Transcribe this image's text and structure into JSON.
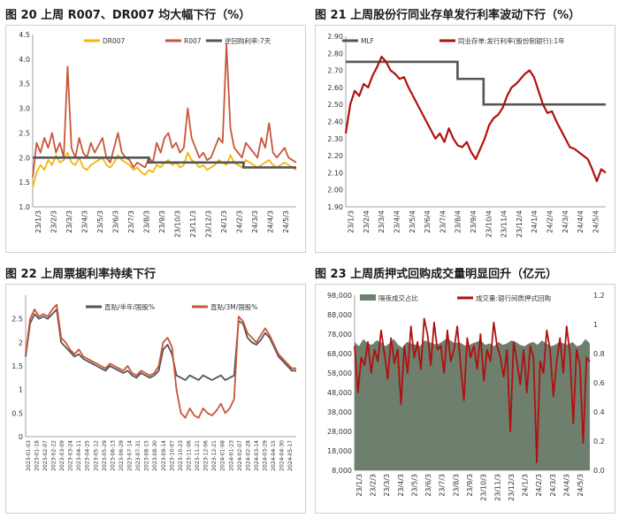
{
  "chart_data": [
    {
      "id": "c20",
      "type": "line",
      "title": "图 20 上周 R007、DR007 均大幅下行（%）",
      "ylim": [
        1.0,
        4.5
      ],
      "yticks": [
        1.0,
        1.5,
        2.0,
        2.5,
        3.0,
        3.5,
        4.0,
        4.5
      ],
      "ytick_labels": [
        "1.0",
        "1.5",
        "2.0",
        "2.5",
        "3.0",
        "3.5",
        "4.0",
        "4.5"
      ],
      "xticks": [
        "23/1/3",
        "23/2/3",
        "23/3/3",
        "23/4/3",
        "23/5/3",
        "23/6/3",
        "23/7/3",
        "23/8/3",
        "23/9/3",
        "23/10/3",
        "23/11/3",
        "23/12/3",
        "24/1/3",
        "24/2/3",
        "24/3/3",
        "24/4/3",
        "24/5/3"
      ],
      "series": [
        {
          "name": "DR007",
          "color": "#f2b705",
          "kind": "line",
          "values": [
            1.4,
            1.7,
            1.85,
            1.75,
            1.95,
            1.85,
            2.05,
            1.9,
            1.95,
            2.1,
            1.9,
            1.85,
            2.0,
            1.8,
            1.75,
            1.85,
            1.9,
            1.95,
            2.0,
            1.85,
            1.8,
            1.9,
            2.05,
            1.95,
            1.9,
            1.85,
            1.75,
            1.8,
            1.7,
            1.65,
            1.75,
            1.7,
            1.85,
            1.8,
            1.9,
            1.95,
            1.85,
            1.9,
            1.8,
            1.85,
            2.1,
            1.95,
            1.9,
            1.8,
            1.85,
            1.75,
            1.8,
            1.85,
            1.95,
            1.9,
            1.85,
            2.05,
            1.9,
            1.85,
            1.8,
            1.95,
            1.9,
            1.85,
            1.8,
            1.85,
            1.9,
            1.95,
            1.85,
            1.8,
            1.85,
            1.9,
            1.85,
            1.8,
            1.75
          ]
        },
        {
          "name": "R007",
          "color": "#c9553a",
          "kind": "line",
          "values": [
            1.6,
            2.3,
            2.1,
            2.4,
            2.2,
            2.5,
            2.1,
            2.3,
            2.0,
            3.85,
            2.2,
            2.0,
            2.4,
            2.1,
            2.0,
            2.3,
            2.1,
            2.25,
            2.4,
            2.0,
            1.9,
            2.2,
            2.5,
            2.1,
            2.0,
            1.95,
            1.8,
            1.9,
            1.85,
            1.8,
            2.0,
            1.9,
            2.3,
            2.1,
            2.4,
            2.5,
            2.2,
            2.3,
            2.1,
            2.2,
            3.0,
            2.4,
            2.2,
            2.0,
            2.1,
            1.95,
            2.0,
            2.2,
            2.4,
            2.3,
            4.3,
            2.6,
            2.2,
            2.1,
            2.0,
            2.3,
            2.2,
            2.1,
            2.0,
            2.4,
            2.2,
            2.7,
            2.1,
            2.0,
            2.1,
            2.2,
            2.0,
            1.95,
            1.9
          ]
        },
        {
          "name": "逆回购利率:7天",
          "color": "#555555",
          "kind": "step",
          "steps": [
            {
              "x": 0.0,
              "y": 2.0
            },
            {
              "x": 0.44,
              "y": 1.9
            },
            {
              "x": 0.8,
              "y": 1.8
            }
          ]
        }
      ]
    },
    {
      "id": "c21",
      "type": "line",
      "title": "图 21 上周股份行同业存单发行利率波动下行（%）",
      "ylim": [
        1.9,
        2.9
      ],
      "yticks": [
        1.9,
        2.0,
        2.1,
        2.2,
        2.3,
        2.4,
        2.5,
        2.6,
        2.7,
        2.8,
        2.9
      ],
      "ytick_labels": [
        "1.90",
        "2.00",
        "2.10",
        "2.20",
        "2.30",
        "2.40",
        "2.50",
        "2.60",
        "2.70",
        "2.80",
        "2.90"
      ],
      "xticks": [
        "23/1/3",
        "23/2/4",
        "23/3/4",
        "23/4/4",
        "23/5/4",
        "23/6/4",
        "23/7/4",
        "23/8/4",
        "23/9/4",
        "23/10/4",
        "23/11/4",
        "23/12/4",
        "24/1/4",
        "24/2/4",
        "24/3/4",
        "24/4/4",
        "24/5/4"
      ],
      "series": [
        {
          "name": "MLF",
          "color": "#555555",
          "kind": "step",
          "steps": [
            {
              "x": 0.0,
              "y": 2.75
            },
            {
              "x": 0.43,
              "y": 2.65
            },
            {
              "x": 0.53,
              "y": 2.5
            }
          ]
        },
        {
          "name": "同业存单:发行利率(股份制银行):1年",
          "color": "#b01010",
          "kind": "line",
          "values": [
            2.33,
            2.5,
            2.58,
            2.55,
            2.62,
            2.6,
            2.67,
            2.72,
            2.78,
            2.75,
            2.7,
            2.68,
            2.65,
            2.66,
            2.6,
            2.55,
            2.5,
            2.45,
            2.4,
            2.35,
            2.3,
            2.33,
            2.28,
            2.36,
            2.3,
            2.26,
            2.25,
            2.28,
            2.22,
            2.18,
            2.24,
            2.3,
            2.38,
            2.42,
            2.44,
            2.48,
            2.55,
            2.6,
            2.62,
            2.65,
            2.68,
            2.7,
            2.66,
            2.58,
            2.5,
            2.45,
            2.46,
            2.4,
            2.35,
            2.3,
            2.25,
            2.24,
            2.22,
            2.2,
            2.18,
            2.12,
            2.05,
            2.12,
            2.1
          ]
        }
      ]
    },
    {
      "id": "c22",
      "type": "line",
      "title": "图 22 上周票据利率持续下行",
      "ylim": [
        0,
        3
      ],
      "yticks": [
        0,
        0.5,
        1,
        1.5,
        2,
        2.5
      ],
      "ytick_labels": [
        "0",
        "0.5",
        "1",
        "1.5",
        "2",
        "2.5"
      ],
      "xticks": [
        "2023-01-03",
        "2023-01-18",
        "2023-02-07",
        "2023-02-22",
        "2023-03-09",
        "2023-03-24",
        "2023-04-11",
        "2023-04-25",
        "2023-05-12",
        "2023-05-29",
        "2023-06-13",
        "2023-06-29",
        "2023-07-14",
        "2023-07-31",
        "2023-08-15",
        "2023-08-30",
        "2023-09-14",
        "2023-10-07",
        "2023-10-23",
        "2023-11-06",
        "2023-11-21",
        "2023-12-06",
        "2023-12-21",
        "2024-01-08",
        "2024-01-23",
        "2024-02-07",
        "2024-02-28",
        "2024-03-14",
        "2024-03-29",
        "2024-04-15",
        "2024-04-30",
        "2024-05-17"
      ],
      "series": [
        {
          "name": "直贴/半年/国股%",
          "color": "#555555",
          "kind": "line",
          "values": [
            1.7,
            2.4,
            2.6,
            2.5,
            2.55,
            2.5,
            2.6,
            2.7,
            2.0,
            1.9,
            1.8,
            1.7,
            1.75,
            1.65,
            1.6,
            1.55,
            1.5,
            1.45,
            1.4,
            1.5,
            1.45,
            1.4,
            1.35,
            1.4,
            1.3,
            1.25,
            1.35,
            1.3,
            1.25,
            1.3,
            1.4,
            1.85,
            1.95,
            1.75,
            1.3,
            1.25,
            1.2,
            1.3,
            1.25,
            1.2,
            1.3,
            1.25,
            1.2,
            1.25,
            1.3,
            1.2,
            1.25,
            1.3,
            2.45,
            2.4,
            2.1,
            2.0,
            1.95,
            2.05,
            2.2,
            2.1,
            1.9,
            1.7,
            1.6,
            1.5,
            1.4,
            1.4
          ]
        },
        {
          "name": "直贴/3M/国股%",
          "color": "#c9553a",
          "kind": "line",
          "values": [
            1.75,
            2.5,
            2.7,
            2.55,
            2.6,
            2.55,
            2.7,
            2.8,
            2.1,
            2.0,
            1.85,
            1.75,
            1.85,
            1.7,
            1.65,
            1.6,
            1.55,
            1.5,
            1.45,
            1.55,
            1.5,
            1.45,
            1.4,
            1.5,
            1.35,
            1.3,
            1.4,
            1.35,
            1.3,
            1.35,
            1.5,
            2.0,
            2.1,
            1.9,
            1.0,
            0.5,
            0.4,
            0.6,
            0.45,
            0.4,
            0.6,
            0.5,
            0.45,
            0.55,
            0.7,
            0.5,
            0.6,
            0.8,
            2.55,
            2.45,
            2.2,
            2.1,
            2.0,
            2.15,
            2.3,
            2.15,
            1.95,
            1.75,
            1.65,
            1.55,
            1.45,
            1.45
          ]
        }
      ]
    },
    {
      "id": "c23",
      "type": "area",
      "title": "图 23 上周质押式回购成交量明显回升（亿元）",
      "ylim": [
        8000,
        98000
      ],
      "yticks": [
        8000,
        18000,
        28000,
        38000,
        48000,
        58000,
        68000,
        78000,
        88000,
        98000
      ],
      "ytick_labels": [
        "8,000",
        "18,000",
        "28,000",
        "38,000",
        "48,000",
        "58,000",
        "68,000",
        "78,000",
        "88,000",
        "98,000"
      ],
      "ylim_right": [
        0,
        1.2
      ],
      "yticks_right": [
        0,
        0.2,
        0.4,
        0.6,
        0.8,
        1.0,
        1.2
      ],
      "ytick_labels_right": [
        "0.0",
        "0.2",
        "0.4",
        "0.6",
        "0.8",
        "1",
        "1.2"
      ],
      "xticks": [
        "23/1/3",
        "23/2/3",
        "23/3/3",
        "23/4/3",
        "23/5/3",
        "23/6/3",
        "23/7/3",
        "23/8/3",
        "23/9/3",
        "23/10/3",
        "23/11/3",
        "23/12/3",
        "24/1/3",
        "24/2/3",
        "24/3/3",
        "24/4/3",
        "24/5/3"
      ],
      "series": [
        {
          "name": "隔夜成交占比",
          "color": "#6e7f6e",
          "kind": "area",
          "axis": "right",
          "values": [
            0.88,
            0.85,
            0.9,
            0.87,
            0.86,
            0.89,
            0.88,
            0.85,
            0.87,
            0.9,
            0.86,
            0.84,
            0.88,
            0.87,
            0.86,
            0.85,
            0.89,
            0.88,
            0.87,
            0.86,
            0.88,
            0.9,
            0.89,
            0.87,
            0.88,
            0.86,
            0.85,
            0.87,
            0.88,
            0.89,
            0.86,
            0.87,
            0.85,
            0.88,
            0.86,
            0.87,
            0.89,
            0.88,
            0.86,
            0.85,
            0.87,
            0.88,
            0.86,
            0.89,
            0.87,
            0.85,
            0.86,
            0.88,
            0.87,
            0.86,
            0.88,
            0.85,
            0.86,
            0.9,
            0.87
          ]
        },
        {
          "name": "成交量:银行间质押式回购",
          "color": "#b01010",
          "kind": "line",
          "axis": "left",
          "values": [
            72000,
            48000,
            66000,
            62000,
            74000,
            58000,
            70000,
            64000,
            80000,
            68000,
            55000,
            76000,
            63000,
            70000,
            42000,
            72000,
            58000,
            82000,
            66000,
            74000,
            60000,
            86000,
            78000,
            62000,
            84000,
            70000,
            72000,
            58000,
            80000,
            64000,
            70000,
            82000,
            62000,
            44000,
            76000,
            66000,
            72000,
            60000,
            78000,
            54000,
            70000,
            64000,
            84000,
            72000,
            66000,
            56000,
            70000,
            28000,
            74000,
            64000,
            52000,
            70000,
            48000,
            72000,
            66000,
            12000,
            64000,
            58000,
            80000,
            70000,
            46000,
            64000,
            76000,
            58000,
            82000,
            68000,
            32000,
            70000,
            62000,
            22000,
            66000,
            64000
          ]
        }
      ]
    }
  ]
}
